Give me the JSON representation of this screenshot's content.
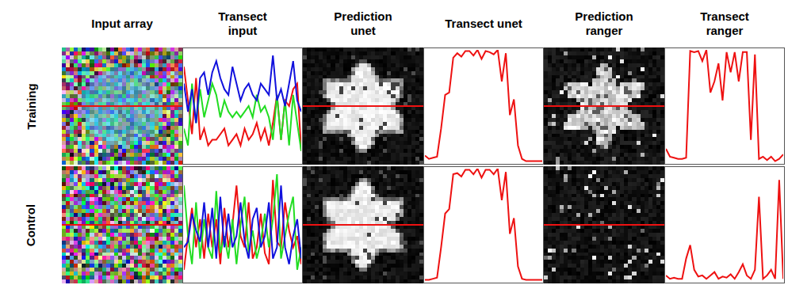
{
  "columns": [
    "Input array",
    "Transect input",
    "Prediction unet",
    "Transect unet",
    "Prediction ranger",
    "Transect ranger"
  ],
  "rows": [
    "Training",
    "Control"
  ],
  "chart_data": [
    {
      "type": "line",
      "xlim": [
        0,
        29
      ],
      "ylim": [
        0,
        1
      ],
      "tick_labels": false,
      "series": [
        {
          "color": "#ee1111",
          "values": [
            0.85,
            0.55,
            0.25,
            0.75,
            0.2,
            0.3,
            0.15,
            0.2,
            0.2,
            0.25,
            0.3,
            0.15,
            0.2,
            0.25,
            0.15,
            0.3,
            0.2,
            0.25,
            0.35,
            0.2,
            0.3,
            0.15,
            0.35,
            0.6,
            0.2,
            0.55,
            0.5,
            0.65,
            0.7,
            0.1
          ]
        },
        {
          "color": "#22dd22",
          "values": [
            0.3,
            0.15,
            0.7,
            0.35,
            0.65,
            0.4,
            0.55,
            0.7,
            0.6,
            0.4,
            0.55,
            0.45,
            0.4,
            0.45,
            0.4,
            0.45,
            0.5,
            0.4,
            0.6,
            0.45,
            0.5,
            0.4,
            0.2,
            0.6,
            0.2,
            0.55,
            0.15,
            0.6,
            0.35,
            0.1
          ]
        },
        {
          "color": "#1111dd",
          "values": [
            0.7,
            0.45,
            0.65,
            0.35,
            0.75,
            0.8,
            0.6,
            0.8,
            0.9,
            0.75,
            0.65,
            0.6,
            0.85,
            0.7,
            0.55,
            0.65,
            0.7,
            0.6,
            0.55,
            0.7,
            0.65,
            0.6,
            0.95,
            0.55,
            0.65,
            0.5,
            0.7,
            0.9,
            0.55,
            0.45
          ]
        }
      ]
    },
    {
      "type": "line",
      "xlim": [
        0,
        29
      ],
      "ylim": [
        0,
        1
      ],
      "tick_labels": false,
      "series": [
        {
          "color": "#ee1111",
          "values": [
            0.06,
            0.03,
            0.04,
            0.05,
            0.3,
            0.6,
            0.62,
            0.93,
            0.97,
            0.94,
            0.99,
            0.99,
            0.95,
            1.0,
            0.92,
            0.99,
            0.98,
            0.96,
            1.0,
            0.72,
            0.97,
            0.42,
            0.56,
            0.15,
            0.03,
            0.01,
            0.01,
            0.01,
            0.01,
            0.01
          ]
        }
      ]
    },
    {
      "type": "line",
      "xlim": [
        0,
        29
      ],
      "ylim": [
        0,
        1
      ],
      "tick_labels": false,
      "series": [
        {
          "color": "#ee1111",
          "values": [
            0.12,
            0.05,
            0.04,
            0.03,
            0.03,
            0.04,
            0.99,
            0.98,
            0.99,
            0.9,
            1.0,
            0.62,
            0.72,
            0.88,
            0.55,
            0.98,
            0.8,
            0.98,
            0.72,
            0.98,
            0.98,
            0.2,
            0.96,
            0.03,
            0.05,
            0.02,
            0.05,
            0.01,
            0.03,
            0.07
          ]
        }
      ]
    },
    {
      "type": "line",
      "xlim": [
        0,
        29
      ],
      "ylim": [
        0,
        1
      ],
      "tick_labels": false,
      "series": [
        {
          "color": "#ee1111",
          "values": [
            0.1,
            0.4,
            0.65,
            0.3,
            0.55,
            0.2,
            0.6,
            0.3,
            0.55,
            0.15,
            0.65,
            0.3,
            0.5,
            0.85,
            0.4,
            0.3,
            0.7,
            0.2,
            0.3,
            0.6,
            0.25,
            0.15,
            0.9,
            0.35,
            0.3,
            0.7,
            0.45,
            0.3,
            0.4,
            0.15
          ]
        },
        {
          "color": "#22dd22",
          "values": [
            0.85,
            0.4,
            0.15,
            0.7,
            0.2,
            0.55,
            0.3,
            0.2,
            0.8,
            0.25,
            0.4,
            0.2,
            0.55,
            0.15,
            0.5,
            0.75,
            0.25,
            0.45,
            0.2,
            0.35,
            0.6,
            0.3,
            0.55,
            0.95,
            0.2,
            0.4,
            0.6,
            0.75,
            0.1,
            0.3
          ]
        },
        {
          "color": "#1111dd",
          "values": [
            0.3,
            0.35,
            0.6,
            0.45,
            0.35,
            0.7,
            0.3,
            0.65,
            0.2,
            0.75,
            0.3,
            0.6,
            0.3,
            0.4,
            0.7,
            0.35,
            0.2,
            0.55,
            0.65,
            0.3,
            0.4,
            0.7,
            0.2,
            0.3,
            0.85,
            0.3,
            0.15,
            0.4,
            0.55,
            0.2
          ]
        }
      ]
    },
    {
      "type": "line",
      "xlim": [
        0,
        29
      ],
      "ylim": [
        0,
        1
      ],
      "tick_labels": false,
      "series": [
        {
          "color": "#ee1111",
          "values": [
            0.01,
            0.01,
            0.02,
            0.03,
            0.3,
            0.6,
            0.64,
            0.95,
            0.96,
            0.93,
            0.99,
            0.99,
            0.95,
            1.0,
            0.92,
            0.99,
            0.99,
            0.95,
            1.0,
            0.72,
            0.97,
            0.42,
            0.56,
            0.13,
            0.02,
            0.01,
            0.01,
            0.01,
            0.01,
            0.01
          ]
        }
      ]
    },
    {
      "type": "line",
      "xlim": [
        0,
        29
      ],
      "ylim": [
        0,
        1
      ],
      "tick_labels": false,
      "series": [
        {
          "color": "#ee1111",
          "values": [
            0.05,
            0.02,
            0.03,
            0.02,
            0.02,
            0.2,
            0.32,
            0.1,
            0.04,
            0.05,
            0.02,
            0.05,
            0.08,
            0.02,
            0.04,
            0.03,
            0.06,
            0.02,
            0.08,
            0.15,
            0.05,
            0.02,
            0.1,
            0.75,
            0.02,
            0.05,
            0.1,
            0.02,
            0.9,
            0.02
          ]
        }
      ]
    }
  ]
}
